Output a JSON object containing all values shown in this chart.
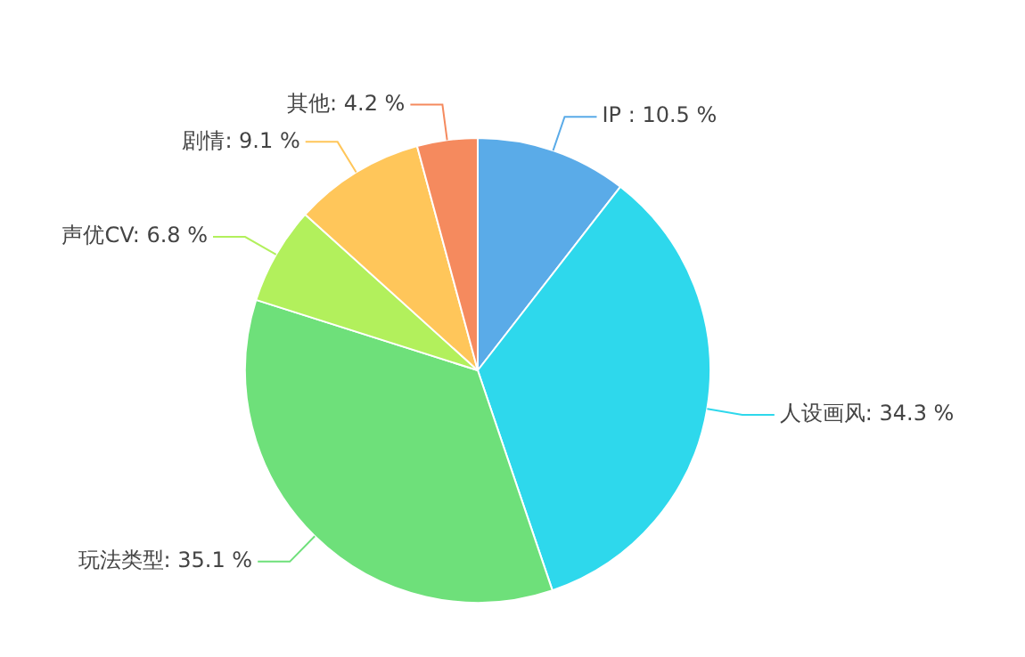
{
  "chart_data": {
    "type": "pie",
    "categories": [
      "IP ",
      "人设画风",
      "玩法类型",
      "声优CV",
      "剧情",
      "其他"
    ],
    "values": [
      10.5,
      34.3,
      35.1,
      6.8,
      9.1,
      4.2
    ],
    "value_labels": [
      "10.5 %",
      "34.3 %",
      "35.1 %",
      "6.8 %",
      "9.1 %",
      "4.2 %"
    ],
    "colors": [
      "#5aabe8",
      "#2ed8ec",
      "#6ee07a",
      "#b2f05c",
      "#ffc65a",
      "#f58a5e"
    ],
    "legend": false
  }
}
